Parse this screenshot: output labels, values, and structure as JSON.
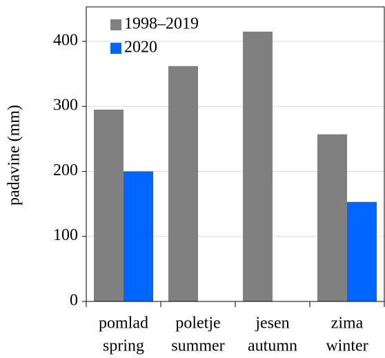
{
  "chart_data": {
    "type": "bar",
    "categories": [
      [
        "pomlad",
        "spring"
      ],
      [
        "poletje",
        "summer"
      ],
      [
        "jesen",
        "autumn"
      ],
      [
        "zima",
        "winter"
      ]
    ],
    "series": [
      {
        "name": "1998–2019",
        "color": "#808080",
        "values": [
          295,
          362,
          415,
          257
        ]
      },
      {
        "name": "2020",
        "color": "#0066ff",
        "values": [
          200,
          null,
          null,
          153
        ]
      }
    ],
    "y_label": "padavine (mm)",
    "ylim": [
      0,
      453
    ],
    "yticks": [
      0,
      100,
      200,
      300,
      400
    ],
    "grid": true,
    "legend": "top-left"
  }
}
